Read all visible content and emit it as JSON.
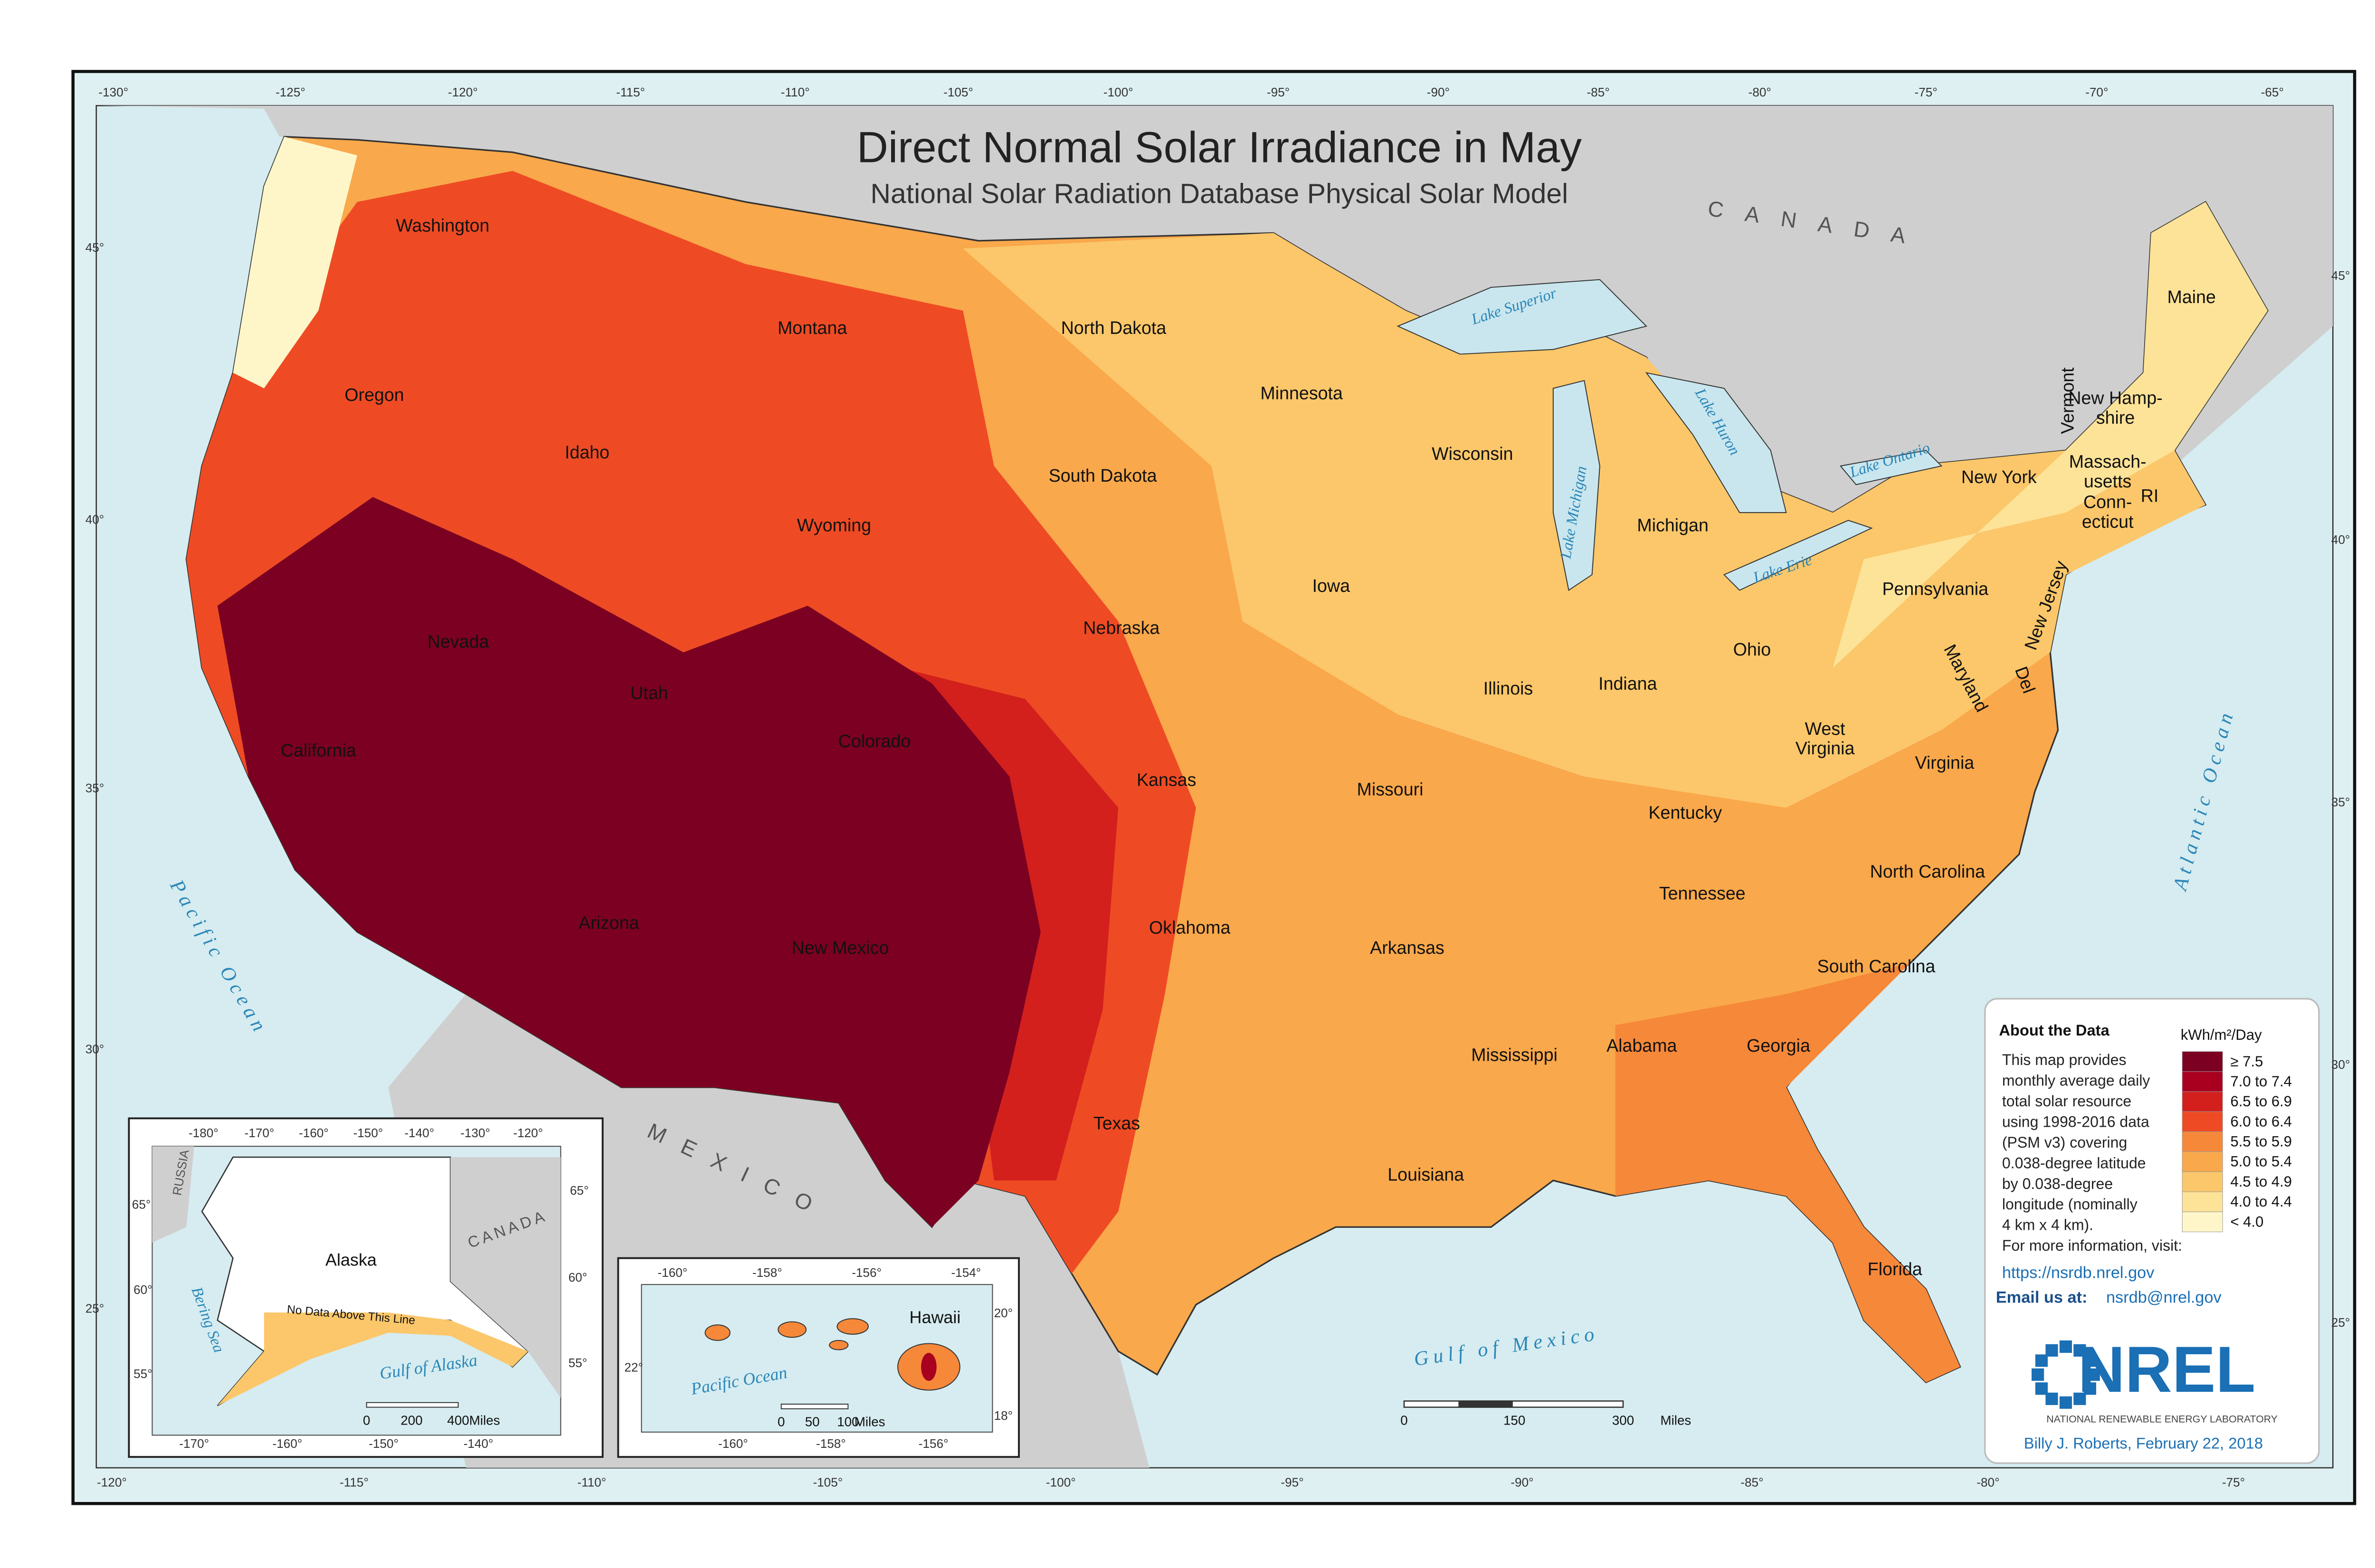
{
  "header": {
    "title": "Direct Normal Solar Irradiance in May",
    "subtitle": "National Solar Radiation Database Physical Solar Model"
  },
  "states": [
    "Washington",
    "Oregon",
    "Idaho",
    "Montana",
    "Wyoming",
    "Nevada",
    "Utah",
    "California",
    "Colorado",
    "Arizona",
    "New Mexico",
    "North Dakota",
    "South Dakota",
    "Nebraska",
    "Kansas",
    "Oklahoma",
    "Texas",
    "Minnesota",
    "Iowa",
    "Missouri",
    "Arkansas",
    "Louisiana",
    "Wisconsin",
    "Illinois",
    "Michigan",
    "Indiana",
    "Ohio",
    "Kentucky",
    "Tennessee",
    "Mississippi",
    "Alabama",
    "Georgia",
    "Florida",
    "South Carolina",
    "North Carolina",
    "Virginia",
    [
      "West",
      "Virginia"
    ],
    "Pennsylvania",
    "New York",
    "Vermont",
    [
      "New Hamp-",
      "shire"
    ],
    [
      "Massach-",
      "usetts"
    ],
    [
      "Conn-",
      "ecticut"
    ],
    "RI",
    "New Jersey",
    "Maryland",
    "Del",
    "Maine"
  ],
  "water": [
    "Lake Superior",
    "Lake Michigan",
    "Lake Huron",
    "Lake Ontario",
    "Lake Erie",
    "Pacific Ocean",
    "Atlantic Ocean",
    "Gulf of Mexico"
  ],
  "countries": [
    "CANADA",
    "MEXICO"
  ],
  "graticule": {
    "top": [
      "-130°",
      "-125°",
      "-120°",
      "-115°",
      "-110°",
      "-105°",
      "-100°",
      "-95°",
      "-90°",
      "-85°",
      "-80°",
      "-75°",
      "-70°",
      "-65°"
    ],
    "bottom": [
      "-120°",
      "-115°",
      "-110°",
      "-105°",
      "-100°",
      "-95°",
      "-90°",
      "-85°",
      "-80°",
      "-75°"
    ],
    "left": [
      "45°",
      "40°",
      "35°",
      "30°",
      "25°"
    ],
    "right": [
      "45°",
      "40°",
      "35°",
      "30°",
      "25°"
    ]
  },
  "scale": [
    "0",
    "150",
    "300",
    "Miles"
  ],
  "legend": {
    "title": "kWh/m²/Day",
    "items": [
      {
        "label": "≥ 7.5",
        "color": "#7b0021"
      },
      {
        "label": "7.0 to 7.4",
        "color": "#a9001f"
      },
      {
        "label": "6.5 to 6.9",
        "color": "#d3201d"
      },
      {
        "label": "6.0 to 6.4",
        "color": "#ee4b24"
      },
      {
        "label": "5.5 to 5.9",
        "color": "#f6883a"
      },
      {
        "label": "5.0 to 5.4",
        "color": "#f9a84b"
      },
      {
        "label": "4.5 to 4.9",
        "color": "#fbc76a"
      },
      {
        "label": "4.0 to 4.4",
        "color": "#fde398"
      },
      {
        "label": "< 4.0",
        "color": "#fef6c9"
      }
    ]
  },
  "about": {
    "heading": "About the Data",
    "lines": [
      "This map provides",
      "monthly average daily",
      "total solar resource",
      "using 1998-2016 data",
      "(PSM v3) covering",
      "0.038-degree latitude",
      "by 0.038-degree",
      "longitude (nominally",
      "4 km x 4 km).",
      "For more information, visit:"
    ],
    "link": "https://nsrdb.nrel.gov",
    "email_label": "Email us at:",
    "email": "nsrdb@nrel.gov"
  },
  "logo": {
    "name": "NREL",
    "full": "NATIONAL RENEWABLE ENERGY LABORATORY"
  },
  "credit": "Billy J. Roberts,  February 22, 2018",
  "alaska": {
    "label": "Alaska",
    "note": "No Data Above This Line",
    "countries": [
      "RUSSIA",
      "CANADA"
    ],
    "water": [
      "Bering Sea",
      "Gulf of Alaska"
    ],
    "top": [
      "-180°",
      "-170°",
      "-160°",
      "-150°",
      "-140°",
      "-130°",
      "-120°"
    ],
    "bottom": [
      "-170°",
      "-160°",
      "-150°",
      "-140°"
    ],
    "left": [
      "65°",
      "60°",
      "55°"
    ],
    "right": [
      "65°",
      "60°",
      "55°"
    ],
    "scale": [
      "0",
      "200",
      "400",
      "Miles"
    ]
  },
  "hawaii": {
    "label": "Hawaii",
    "water": [
      "Pacific Ocean"
    ],
    "top": [
      "-160°",
      "-158°",
      "-156°",
      "-154°"
    ],
    "bottom": [
      "-160°",
      "-158°",
      "-156°"
    ],
    "left": [
      "22°"
    ],
    "right": [
      "20°",
      "18°"
    ],
    "scale": [
      "0",
      "50",
      "100",
      "Miles"
    ]
  }
}
